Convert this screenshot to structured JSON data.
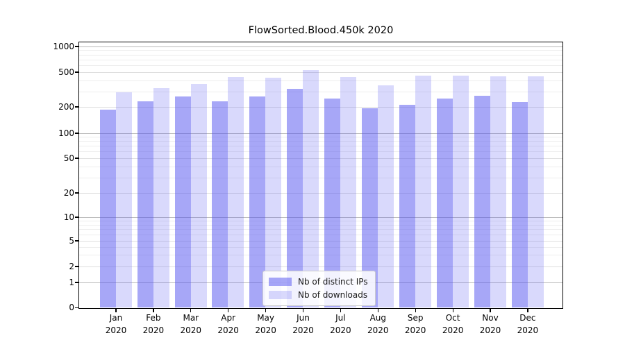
{
  "figure": {
    "background": "#ffffff",
    "accent_color": "#5050f0"
  },
  "chart_data": {
    "type": "bar",
    "title": "FlowSorted.Blood.450k 2020",
    "categories": [
      "Jan 2020",
      "Feb 2020",
      "Mar 2020",
      "Apr 2020",
      "May 2020",
      "Jun 2020",
      "Jul 2020",
      "Aug 2020",
      "Sep 2020",
      "Oct 2020",
      "Nov 2020",
      "Dec 2020"
    ],
    "series": [
      {
        "name": "Nb of distinct IPs",
        "color": "#5050f0",
        "fill": "rgba(80,80,240,0.5)",
        "values": [
          185,
          230,
          260,
          230,
          262,
          320,
          248,
          192,
          212,
          248,
          265,
          226
        ]
      },
      {
        "name": "Nb of downloads",
        "color": "#5050f0",
        "fill": "rgba(80,80,240,0.22)",
        "values": [
          290,
          328,
          365,
          437,
          430,
          525,
          437,
          350,
          455,
          455,
          447,
          447
        ]
      }
    ],
    "xlabel": "",
    "ylabel": "",
    "y_scale": "symlog",
    "y_ticks": [
      0,
      1,
      2,
      5,
      10,
      20,
      50,
      100,
      200,
      500,
      1000
    ],
    "ylim": [
      0,
      1050
    ],
    "grid": "horizontal major + minor",
    "legend_position": "lower center"
  }
}
